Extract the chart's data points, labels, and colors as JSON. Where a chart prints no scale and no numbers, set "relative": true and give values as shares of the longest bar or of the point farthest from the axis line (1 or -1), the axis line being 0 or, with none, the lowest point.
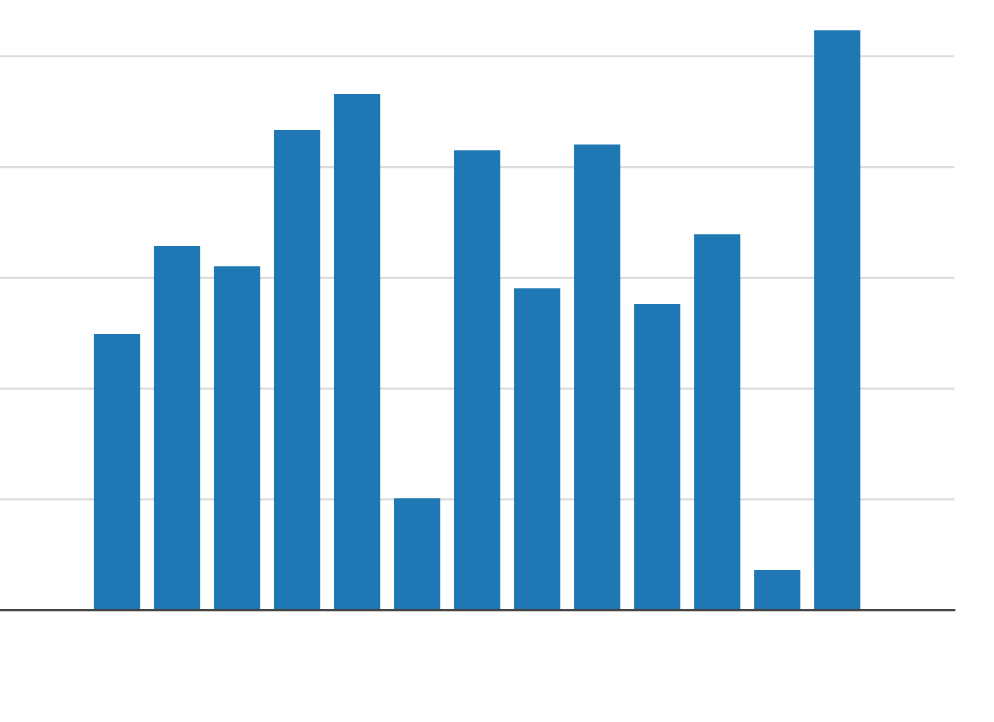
{
  "chart_data": {
    "type": "bar",
    "relative": true,
    "categories": [
      null,
      null,
      null,
      null,
      null,
      null,
      null,
      null,
      null,
      null,
      null,
      null,
      null
    ],
    "values": [
      0.476,
      0.628,
      0.593,
      0.828,
      0.89,
      0.193,
      0.793,
      0.555,
      0.803,
      0.528,
      0.648,
      0.069,
      1
    ],
    "color": "#1f77b4",
    "grid": "y"
  }
}
